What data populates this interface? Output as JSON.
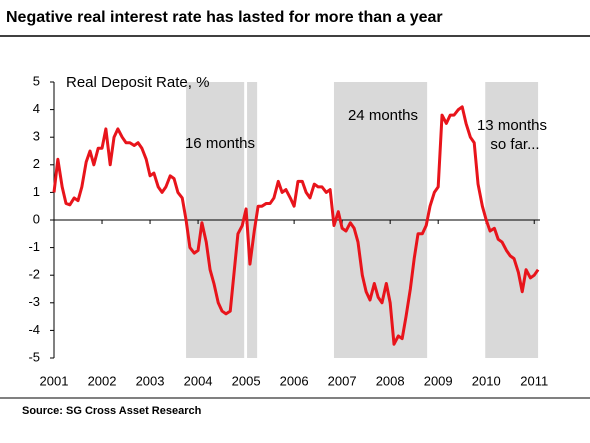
{
  "chart_data": {
    "type": "line",
    "title": "Negative real interest rate has lasted for more than a year",
    "y_label": "Real Deposit Rate, %",
    "source": "Source: SG Cross Asset Research",
    "annotations": [
      "16 months",
      "24 months",
      "13 months",
      "so far..."
    ],
    "shaded": [
      [
        2003.75,
        2004.96
      ],
      [
        2005.02,
        2005.23
      ],
      [
        2006.83,
        2008.77
      ],
      [
        2009.98,
        2011.08
      ]
    ],
    "shade_color": "#d9d9d9",
    "xlim": [
      2001,
      2011.12
    ],
    "xticks": [
      2001,
      2002,
      2003,
      2004,
      2005,
      2006,
      2007,
      2008,
      2009,
      2010,
      2011
    ],
    "ylim": [
      -5,
      5
    ],
    "yticks": [
      -5,
      -4,
      -3,
      -2,
      -1,
      0,
      1,
      2,
      3,
      4,
      5
    ],
    "x": [
      2001.0,
      2001.08,
      2001.17,
      2001.25,
      2001.33,
      2001.42,
      2001.5,
      2001.58,
      2001.67,
      2001.75,
      2001.83,
      2001.92,
      2002.0,
      2002.08,
      2002.17,
      2002.25,
      2002.33,
      2002.42,
      2002.5,
      2002.58,
      2002.67,
      2002.75,
      2002.83,
      2002.92,
      2003.0,
      2003.08,
      2003.17,
      2003.25,
      2003.33,
      2003.42,
      2003.5,
      2003.58,
      2003.67,
      2003.75,
      2003.83,
      2003.92,
      2004.0,
      2004.08,
      2004.17,
      2004.25,
      2004.33,
      2004.42,
      2004.5,
      2004.58,
      2004.67,
      2004.75,
      2004.83,
      2004.92,
      2005.0,
      2005.08,
      2005.17,
      2005.25,
      2005.33,
      2005.42,
      2005.5,
      2005.58,
      2005.67,
      2005.75,
      2005.83,
      2005.92,
      2006.0,
      2006.08,
      2006.17,
      2006.25,
      2006.33,
      2006.42,
      2006.5,
      2006.58,
      2006.67,
      2006.75,
      2006.83,
      2006.92,
      2007.0,
      2007.08,
      2007.17,
      2007.25,
      2007.33,
      2007.42,
      2007.5,
      2007.58,
      2007.67,
      2007.75,
      2007.83,
      2007.92,
      2008.0,
      2008.08,
      2008.17,
      2008.25,
      2008.33,
      2008.42,
      2008.5,
      2008.58,
      2008.67,
      2008.75,
      2008.83,
      2008.92,
      2009.0,
      2009.08,
      2009.17,
      2009.25,
      2009.33,
      2009.42,
      2009.5,
      2009.58,
      2009.67,
      2009.75,
      2009.83,
      2009.92,
      2010.0,
      2010.08,
      2010.17,
      2010.25,
      2010.33,
      2010.42,
      2010.5,
      2010.58,
      2010.67,
      2010.75,
      2010.83,
      2010.92,
      2011.0,
      2011.08
    ],
    "series": [
      {
        "name": "Real Deposit Rate",
        "color": "#e8141b",
        "values": [
          1.0,
          2.2,
          1.2,
          0.6,
          0.55,
          0.8,
          0.7,
          1.2,
          2.1,
          2.5,
          2.0,
          2.6,
          2.6,
          3.3,
          2.0,
          3.0,
          3.3,
          3.0,
          2.8,
          2.8,
          2.7,
          2.8,
          2.6,
          2.2,
          1.6,
          1.7,
          1.2,
          1.0,
          1.2,
          1.6,
          1.5,
          1.0,
          0.8,
          0.0,
          -1.0,
          -1.2,
          -1.1,
          -0.1,
          -0.8,
          -1.8,
          -2.3,
          -3.0,
          -3.3,
          -3.4,
          -3.3,
          -1.9,
          -0.5,
          -0.2,
          0.4,
          -1.6,
          -0.4,
          0.5,
          0.5,
          0.6,
          0.6,
          0.8,
          1.4,
          1.0,
          1.1,
          0.8,
          0.5,
          1.4,
          1.4,
          1.0,
          0.8,
          1.3,
          1.2,
          1.2,
          1.0,
          1.1,
          -0.2,
          0.3,
          -0.3,
          -0.4,
          -0.1,
          -0.3,
          -0.8,
          -2.0,
          -2.6,
          -2.9,
          -2.3,
          -2.8,
          -3.0,
          -2.3,
          -3.0,
          -4.5,
          -4.2,
          -4.3,
          -3.5,
          -2.5,
          -1.4,
          -0.5,
          -0.5,
          -0.2,
          0.5,
          1.0,
          1.2,
          3.8,
          3.5,
          3.8,
          3.8,
          4.0,
          4.1,
          3.5,
          3.0,
          2.8,
          1.3,
          0.5,
          0.0,
          -0.4,
          -0.3,
          -0.7,
          -0.8,
          -1.1,
          -1.3,
          -1.4,
          -1.9,
          -2.6,
          -1.8,
          -2.1,
          -2.0,
          -1.8
        ]
      }
    ]
  }
}
